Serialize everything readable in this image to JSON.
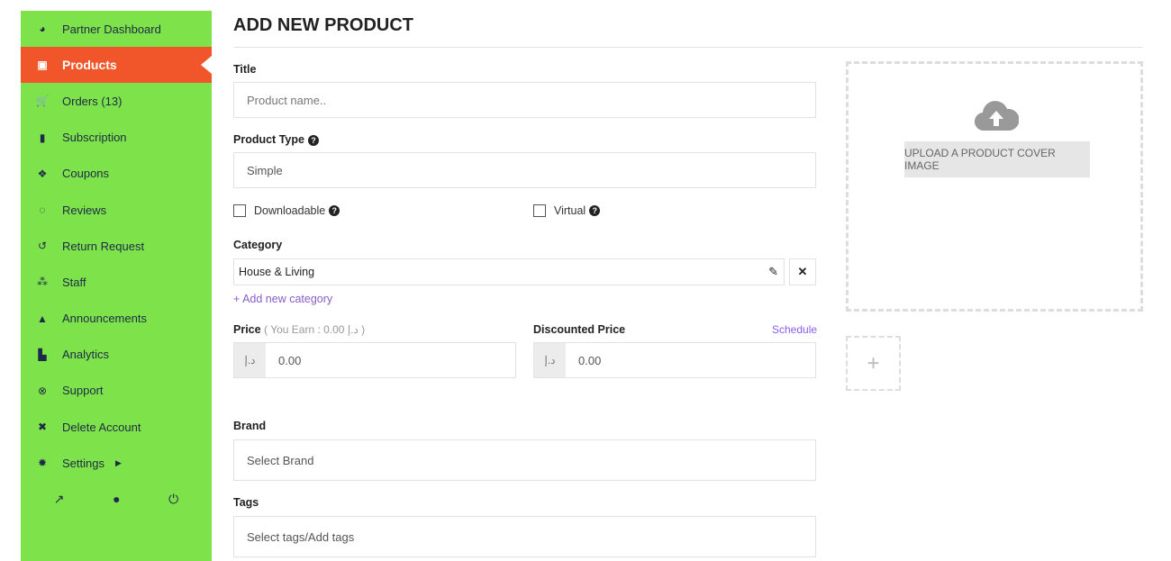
{
  "sidebar": {
    "items": [
      {
        "label": "Partner Dashboard",
        "icon": "gauge-icon"
      },
      {
        "label": "Products",
        "icon": "briefcase-icon",
        "active": true
      },
      {
        "label": "Orders (13)",
        "icon": "cart-icon"
      },
      {
        "label": "Subscription",
        "icon": "book-icon"
      },
      {
        "label": "Coupons",
        "icon": "gift-icon"
      },
      {
        "label": "Reviews",
        "icon": "comments-icon"
      },
      {
        "label": "Return Request",
        "icon": "undo-icon"
      },
      {
        "label": "Staff",
        "icon": "users-icon"
      },
      {
        "label": "Announcements",
        "icon": "bell-icon"
      },
      {
        "label": "Analytics",
        "icon": "chart-icon"
      },
      {
        "label": "Support",
        "icon": "lifering-icon"
      },
      {
        "label": "Delete Account",
        "icon": "user-times-icon"
      },
      {
        "label": "Settings",
        "icon": "gear-icon"
      }
    ],
    "colors": {
      "bg": "#7ee24a",
      "active": "#f1562a"
    }
  },
  "page": {
    "title": "ADD NEW PRODUCT"
  },
  "form": {
    "title_label": "Title",
    "title_placeholder": "Product name..",
    "type_label": "Product Type",
    "type_value": "Simple",
    "downloadable": "Downloadable",
    "virtual": "Virtual",
    "category_label": "Category",
    "category_value": "House & Living",
    "add_category": "+ Add new category",
    "price_label": "Price",
    "price_earn": "( You Earn : 0.00 د.إ )",
    "currency": "د.إ",
    "price_value": "0.00",
    "discount_label": "Discounted Price",
    "schedule": "Schedule",
    "discount_value": "0.00",
    "brand_label": "Brand",
    "brand_placeholder": "Select Brand",
    "tags_label": "Tags",
    "tags_placeholder": "Select tags/Add tags"
  },
  "upload": {
    "button": "UPLOAD A PRODUCT COVER IMAGE"
  }
}
